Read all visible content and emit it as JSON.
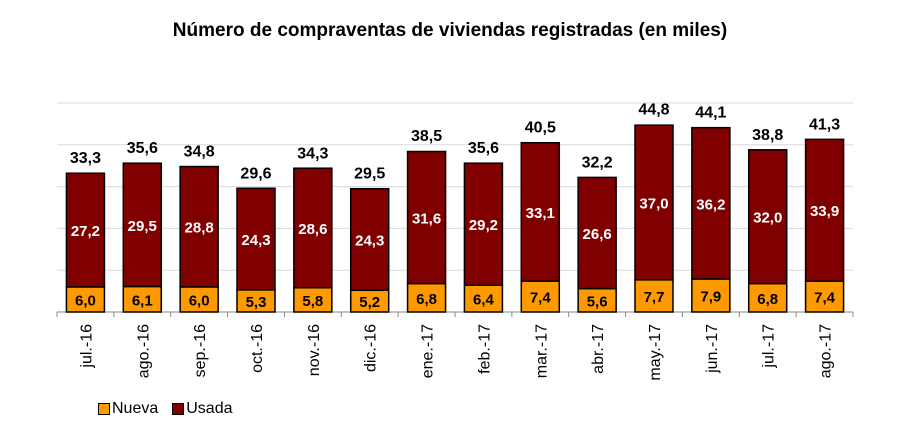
{
  "chart_data": {
    "type": "bar",
    "stacked": true,
    "title": "Número de compraventas de viviendas registradas (en miles)",
    "categories": [
      "jul.-16",
      "ago.-16",
      "sep.-16",
      "oct.-16",
      "nov.-16",
      "dic.-16",
      "ene.-17",
      "feb.-17",
      "mar.-17",
      "abr.-17",
      "may.-17",
      "jun.-17",
      "jul.-17",
      "ago.-17"
    ],
    "series": [
      {
        "name": "Nueva",
        "color": "#FF9900",
        "values": [
          6.0,
          6.1,
          6.0,
          5.3,
          5.8,
          5.2,
          6.8,
          6.4,
          7.4,
          5.6,
          7.7,
          7.9,
          6.8,
          7.4
        ],
        "labels": [
          "6,0",
          "6,1",
          "6,0",
          "5,3",
          "5,8",
          "5,2",
          "6,8",
          "6,4",
          "7,4",
          "5,6",
          "7,7",
          "7,9",
          "6,8",
          "7,4"
        ]
      },
      {
        "name": "Usada",
        "color": "#800000",
        "values": [
          27.2,
          29.5,
          28.8,
          24.3,
          28.6,
          24.3,
          31.6,
          29.2,
          33.1,
          26.6,
          37.0,
          36.2,
          32.0,
          33.9
        ],
        "labels": [
          "27,2",
          "29,5",
          "28,8",
          "24,3",
          "28,6",
          "24,3",
          "31,6",
          "29,2",
          "33,1",
          "26,6",
          "37,0",
          "36,2",
          "32,0",
          "33,9"
        ]
      }
    ],
    "totals": [
      33.3,
      35.6,
      34.8,
      29.6,
      34.3,
      29.5,
      38.5,
      35.6,
      40.5,
      32.2,
      44.8,
      44.1,
      38.8,
      41.3
    ],
    "total_labels": [
      "33,3",
      "35,6",
      "34,8",
      "29,6",
      "34,3",
      "29,5",
      "38,5",
      "35,6",
      "40,5",
      "32,2",
      "44,8",
      "44,1",
      "38,8",
      "41,3"
    ],
    "ylim": [
      0,
      50
    ],
    "grid": true,
    "legend_placement": "bottom-left"
  }
}
